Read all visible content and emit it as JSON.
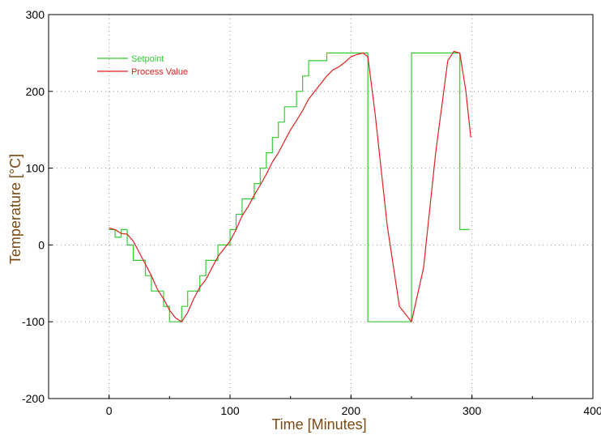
{
  "chart_data": {
    "type": "line",
    "xlabel": "Time [Minutes]",
    "ylabel": "Temperature [°C]",
    "xlim": [
      -50,
      400
    ],
    "ylim": [
      -200,
      300
    ],
    "xticks": [
      "0",
      "100",
      "200",
      "300",
      "400"
    ],
    "yticks": [
      "-200",
      "-100",
      "0",
      "100",
      "200",
      "300"
    ],
    "grid": true,
    "legend_position": "top-left",
    "axis_label_color": "#7a4a12",
    "series": [
      {
        "name": "Setpoint",
        "color": "#33cc33",
        "x": [
          0,
          5,
          5,
          10,
          10,
          15,
          15,
          20,
          20,
          25,
          25,
          30,
          30,
          35,
          35,
          40,
          40,
          45,
          45,
          50,
          50,
          55,
          55,
          60,
          60,
          65,
          65,
          70,
          70,
          75,
          75,
          80,
          80,
          85,
          85,
          90,
          90,
          95,
          95,
          100,
          100,
          105,
          105,
          110,
          110,
          115,
          115,
          120,
          120,
          125,
          125,
          130,
          130,
          135,
          135,
          140,
          140,
          145,
          145,
          150,
          150,
          155,
          155,
          160,
          160,
          165,
          165,
          170,
          170,
          175,
          175,
          180,
          180,
          185,
          185,
          190,
          190,
          195,
          195,
          200,
          200,
          205,
          205,
          210,
          210,
          214,
          214,
          250,
          250,
          290,
          290,
          298
        ],
        "y": [
          20,
          20,
          10,
          10,
          20,
          20,
          0,
          0,
          -20,
          -20,
          -20,
          -20,
          -40,
          -40,
          -60,
          -60,
          -60,
          -60,
          -80,
          -80,
          -100,
          -100,
          -100,
          -100,
          -80,
          -80,
          -60,
          -60,
          -60,
          -60,
          -40,
          -40,
          -20,
          -20,
          -20,
          -20,
          0,
          0,
          0,
          0,
          20,
          20,
          40,
          40,
          60,
          60,
          60,
          60,
          80,
          80,
          100,
          100,
          120,
          120,
          140,
          140,
          160,
          160,
          180,
          180,
          180,
          180,
          200,
          200,
          220,
          220,
          240,
          240,
          240,
          240,
          240,
          240,
          250,
          250,
          250,
          250,
          250,
          250,
          250,
          250,
          250,
          250,
          250,
          250,
          250,
          250,
          -100,
          -100,
          250,
          250,
          20,
          20
        ]
      },
      {
        "name": "Process Value",
        "color": "#e02020",
        "x": [
          0,
          5,
          10,
          15,
          20,
          25,
          30,
          35,
          40,
          45,
          50,
          55,
          60,
          65,
          70,
          75,
          80,
          85,
          90,
          95,
          100,
          105,
          110,
          115,
          120,
          125,
          130,
          135,
          140,
          145,
          150,
          155,
          160,
          165,
          170,
          175,
          180,
          185,
          190,
          195,
          200,
          205,
          210,
          214,
          220,
          230,
          240,
          250,
          260,
          270,
          280,
          285,
          290,
          295,
          299
        ],
        "y": [
          22,
          20,
          15,
          14,
          5,
          -10,
          -25,
          -40,
          -58,
          -70,
          -85,
          -95,
          -100,
          -88,
          -70,
          -55,
          -45,
          -30,
          -15,
          -5,
          5,
          20,
          38,
          50,
          65,
          78,
          92,
          108,
          120,
          135,
          150,
          162,
          175,
          190,
          200,
          210,
          220,
          228,
          232,
          238,
          245,
          248,
          250,
          245,
          170,
          25,
          -80,
          -100,
          -30,
          120,
          240,
          252,
          250,
          200,
          140
        ]
      }
    ]
  }
}
